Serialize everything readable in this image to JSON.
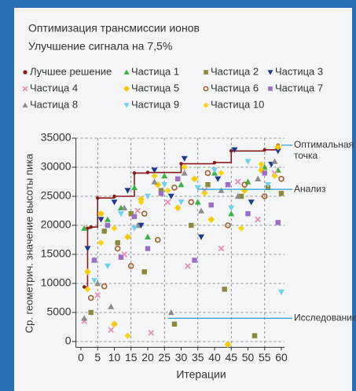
{
  "chart_data": {
    "type": "scatter",
    "title": "Оптимизация трансмиссии ионов",
    "subtitle": "Улучшение сигнала на 7,5%",
    "x_label": "Итерации",
    "y_label": "Ср. геометрич. значение высоты пика",
    "xlim": [
      -1.5,
      61
    ],
    "ylim": [
      -1000,
      35000
    ],
    "xticks": [
      0,
      5,
      10,
      15,
      20,
      25,
      30,
      35,
      40,
      45,
      50,
      55,
      60
    ],
    "yticks": [
      0,
      5000,
      10000,
      15000,
      20000,
      25000,
      30000,
      35000
    ],
    "grid": true,
    "series": [
      {
        "name": "Лучшее решение",
        "color": "#8b1a1a",
        "marker": "dot",
        "style": "step",
        "x": [
          1,
          2,
          3,
          5,
          10,
          16,
          20,
          30,
          40,
          45,
          55,
          59
        ],
        "values": [
          9400,
          19500,
          19700,
          24700,
          25000,
          29000,
          29100,
          30600,
          30800,
          32800,
          33000,
          33800
        ]
      },
      {
        "name": "Частица 1",
        "color": "#3cb043",
        "marker": "tri-up",
        "x": [
          1,
          4,
          8,
          12,
          16,
          20,
          25,
          30,
          35,
          40,
          45,
          50,
          55,
          59
        ],
        "values": [
          19500,
          14000,
          21000,
          23000,
          26500,
          18000,
          28500,
          27000,
          24000,
          29000,
          22000,
          27500,
          30000,
          29500
        ]
      },
      {
        "name": "Частица 2",
        "color": "#8a8a3a",
        "marker": "square",
        "x": [
          3,
          7,
          11,
          15,
          19,
          24,
          28,
          33,
          38,
          43,
          48,
          52,
          56,
          60
        ],
        "values": [
          5000,
          19000,
          17000,
          22000,
          12000,
          26000,
          3000,
          20000,
          27000,
          9000,
          25000,
          1000,
          26500,
          25500
        ]
      },
      {
        "name": "Частица 3",
        "color": "#1f3a8a",
        "marker": "tri-down",
        "x": [
          2,
          6,
          10,
          14,
          18,
          22,
          27,
          31,
          36,
          41,
          46,
          51,
          57,
          59
        ],
        "values": [
          16000,
          21000,
          24000,
          26000,
          20000,
          29500,
          25000,
          31500,
          18000,
          28000,
          33000,
          24000,
          30500,
          32800
        ]
      },
      {
        "name": "Частица 4",
        "color": "#e78fb3",
        "marker": "cross",
        "x": [
          1,
          5,
          9,
          13,
          17,
          21,
          26,
          32,
          37,
          42,
          47,
          53,
          58
        ],
        "values": [
          3500,
          8000,
          2000,
          15000,
          22500,
          1500,
          24000,
          13000,
          26000,
          16000,
          27500,
          21000,
          29000
        ]
      },
      {
        "name": "Частица 5",
        "color": "#f5c800",
        "marker": "star",
        "x": [
          2,
          6,
          10,
          14,
          18,
          23,
          29,
          34,
          39,
          44,
          49,
          54,
          59
        ],
        "values": [
          12000,
          22000,
          3000,
          18000,
          24500,
          27000,
          23000,
          28000,
          21000,
          -500,
          26000,
          29500,
          33500
        ]
      },
      {
        "name": "Частица 6",
        "color": "#a0622d",
        "marker": "ring",
        "x": [
          3,
          7,
          11,
          15,
          19,
          23,
          28,
          33,
          38,
          44,
          49,
          55,
          60
        ],
        "values": [
          7500,
          9500,
          16000,
          13000,
          22000,
          17500,
          26500,
          24000,
          29000,
          20000,
          27000,
          25000,
          28000
        ]
      },
      {
        "name": "Частица 7",
        "color": "#9b6fc7",
        "marker": "square",
        "x": [
          4,
          8,
          12,
          16,
          20,
          24,
          29,
          34,
          39,
          44,
          50,
          55,
          59
        ],
        "values": [
          14000,
          20000,
          14500,
          21500,
          16000,
          25500,
          28000,
          14000,
          23500,
          27000,
          22000,
          29000,
          20500
        ]
      },
      {
        "name": "Частица 8",
        "color": "#8c8c8c",
        "marker": "tri-up",
        "x": [
          1,
          5,
          9,
          13,
          17,
          22,
          27,
          31,
          36,
          42,
          47,
          53,
          58
        ],
        "values": [
          4000,
          10000,
          6000,
          23000,
          20000,
          27500,
          5000,
          29000,
          22500,
          26000,
          25000,
          28000,
          31000
        ]
      },
      {
        "name": "Частица 9",
        "color": "#6fd0f0",
        "marker": "tri-down",
        "x": [
          4,
          8,
          12,
          16,
          20,
          25,
          30,
          35,
          40,
          45,
          50,
          56,
          60
        ],
        "values": [
          10500,
          13000,
          22000,
          19500,
          25000,
          27000,
          24000,
          26500,
          29500,
          23000,
          31000,
          27000,
          8500
        ]
      },
      {
        "name": "Частица 10",
        "color": "#f7d516",
        "marker": "diamond",
        "x": [
          2,
          6,
          10,
          14,
          18,
          22,
          26,
          31,
          37,
          42,
          48,
          54,
          58
        ],
        "values": [
          9000,
          17000,
          19500,
          1000,
          24000,
          28500,
          26000,
          30000,
          25500,
          29000,
          19500,
          30500,
          28500
        ]
      }
    ],
    "annotations": [
      {
        "lines": [
          "Оптимальная",
          "точка"
        ],
        "x": 60,
        "y": 33800
      },
      {
        "lines": [
          "Анализ"
        ],
        "x": 35,
        "y": 26200
      },
      {
        "lines": [
          "Исследование"
        ],
        "x": 26,
        "y": 4000
      }
    ]
  }
}
